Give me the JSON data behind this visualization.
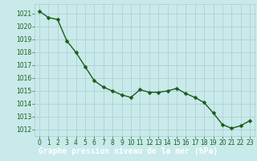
{
  "x": [
    0,
    1,
    2,
    3,
    4,
    5,
    6,
    7,
    8,
    9,
    10,
    11,
    12,
    13,
    14,
    15,
    16,
    17,
    18,
    19,
    20,
    21,
    22,
    23
  ],
  "y": [
    1021.2,
    1020.7,
    1020.55,
    1018.9,
    1018.0,
    1016.9,
    1015.8,
    1015.3,
    1015.0,
    1014.7,
    1014.5,
    1015.1,
    1014.9,
    1014.9,
    1015.0,
    1015.2,
    1014.8,
    1014.5,
    1014.1,
    1013.3,
    1012.4,
    1012.1,
    1012.3,
    1012.7
  ],
  "line_color": "#1a5c1a",
  "marker": "D",
  "marker_size": 2.5,
  "bg_color": "#c8eaea",
  "grid_color": "#aacccc",
  "footer_bg": "#2e7d2e",
  "ylim_min": 1011.5,
  "ylim_max": 1021.75,
  "xlim_min": -0.5,
  "xlim_max": 23.5,
  "yticks": [
    1012,
    1013,
    1014,
    1015,
    1016,
    1017,
    1018,
    1019,
    1020,
    1021
  ],
  "xlabel": "Graphe pression niveau de la mer (hPa)",
  "xlabel_color": "#ffffff",
  "xlabel_fontsize": 7,
  "tick_color": "#1a5c1a",
  "tick_fontsize": 5.5,
  "line_width": 1.0
}
